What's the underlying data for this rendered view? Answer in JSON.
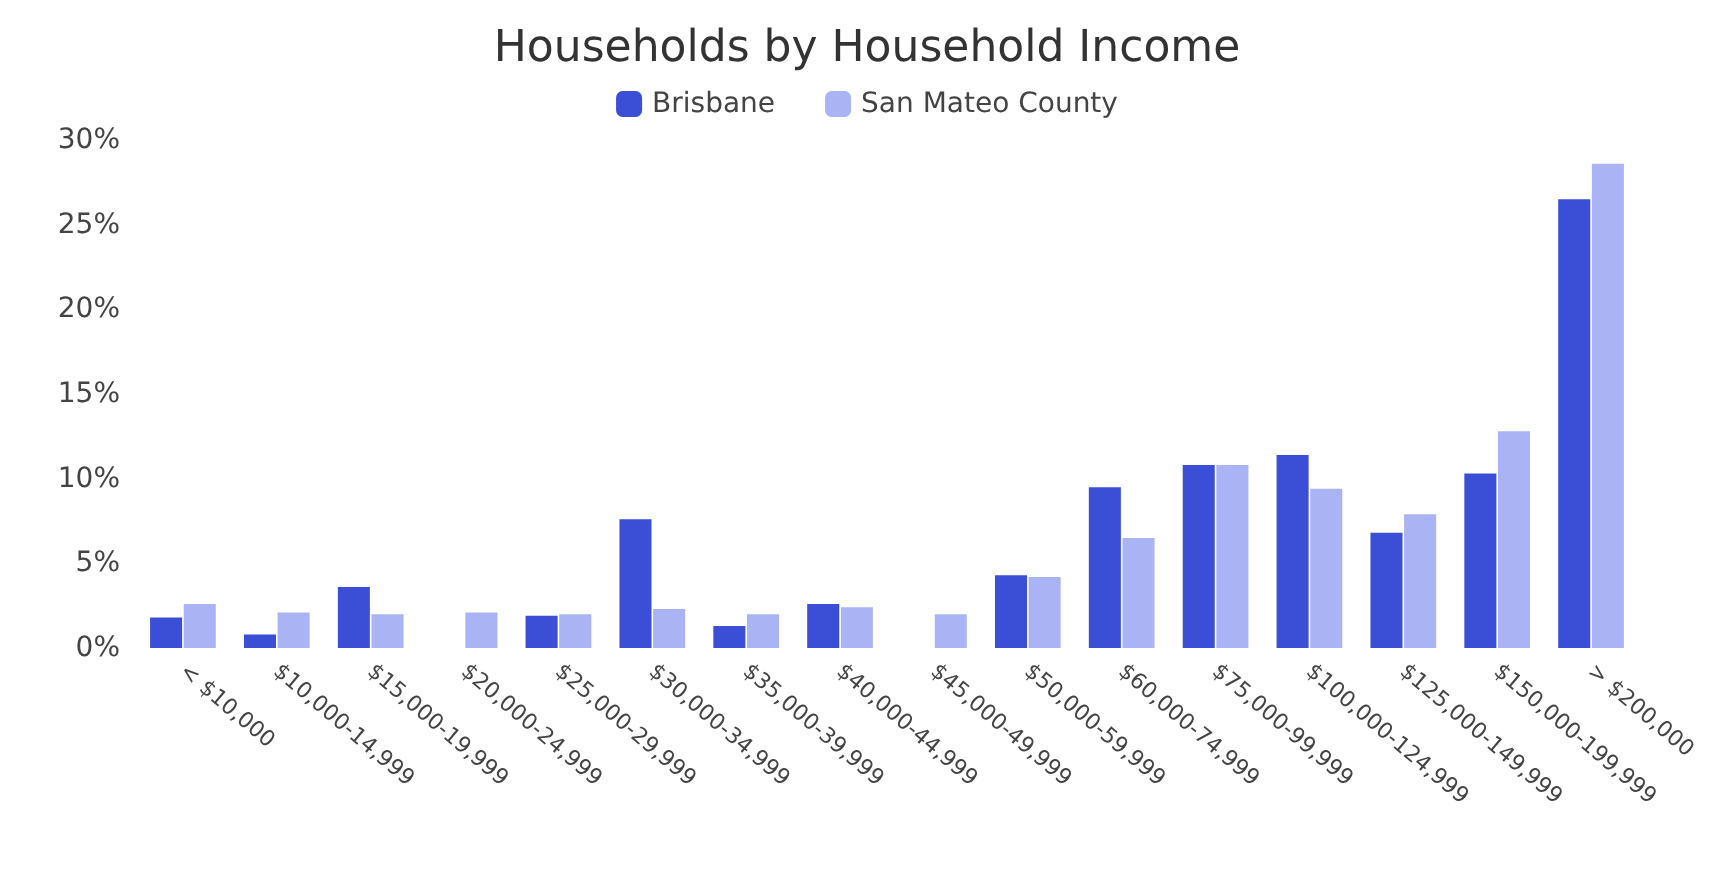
{
  "chart_data": {
    "type": "bar",
    "title": "Households by Household Income",
    "categories": [
      "< $10,000",
      "$10,000-14,999",
      "$15,000-19,999",
      "$20,000-24,999",
      "$25,000-29,999",
      "$30,000-34,999",
      "$35,000-39,999",
      "$40,000-44,999",
      "$45,000-49,999",
      "$50,000-59,999",
      "$60,000-74,999",
      "$75,000-99,999",
      "$100,000-124,999",
      "$125,000-149,999",
      "$150,000-199,999",
      "> $200,000"
    ],
    "series": [
      {
        "name": "Brisbane",
        "color": "#3b4fd6",
        "values": [
          1.8,
          0.8,
          3.6,
          0,
          1.9,
          7.6,
          1.3,
          2.6,
          0,
          4.3,
          9.5,
          10.8,
          11.4,
          6.8,
          10.3,
          26.5
        ]
      },
      {
        "name": "San Mateo County",
        "color": "#aab4f5",
        "values": [
          2.6,
          2.1,
          2.0,
          2.1,
          2.0,
          2.3,
          2.0,
          2.4,
          2.0,
          4.2,
          6.5,
          10.8,
          9.4,
          7.9,
          12.8,
          28.6
        ]
      }
    ],
    "ylim": [
      0,
      30
    ],
    "yticks": [
      {
        "value": 0,
        "label": "0%"
      },
      {
        "value": 5,
        "label": "5%"
      },
      {
        "value": 10,
        "label": "10%"
      },
      {
        "value": 15,
        "label": "15%"
      },
      {
        "value": 20,
        "label": "20%"
      },
      {
        "value": 25,
        "label": "25%"
      },
      {
        "value": 30,
        "label": "30%"
      }
    ],
    "grid": false,
    "legend": "top"
  }
}
